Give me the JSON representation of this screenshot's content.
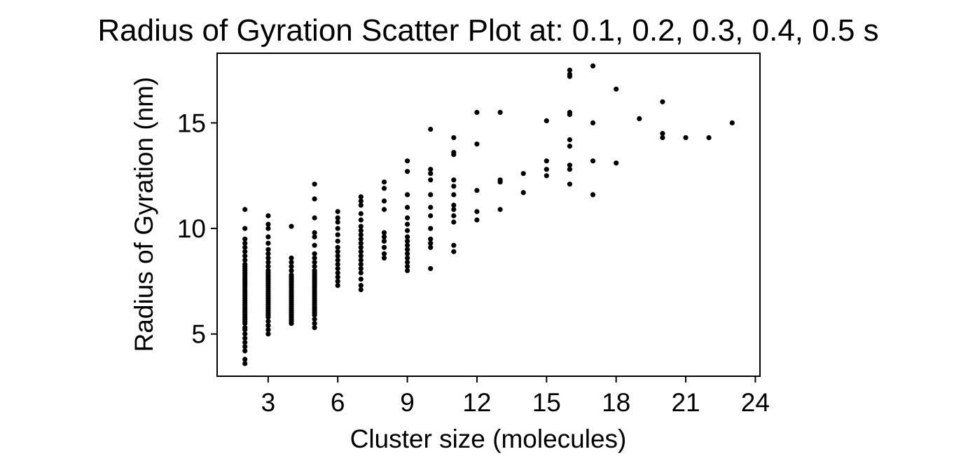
{
  "chart_data": {
    "type": "scatter",
    "title": "Radius of Gyration Scatter Plot at: 0.1, 0.2, 0.3, 0.4, 0.5 s",
    "xlabel": "Cluster size (molecules)",
    "ylabel": "Radius of Gyration (nm)",
    "xlim": [
      0.8,
      24.2
    ],
    "ylim": [
      3.0,
      18.3
    ],
    "xticks": [
      3,
      6,
      9,
      12,
      15,
      18,
      21,
      24
    ],
    "yticks": [
      5,
      10,
      15
    ],
    "grid": false,
    "marker_color": "#000000",
    "series": [
      {
        "points": [
          [
            2,
            3.6
          ],
          [
            2,
            3.8
          ],
          [
            2,
            4.2
          ],
          [
            2,
            4.4
          ],
          [
            2,
            4.6
          ],
          [
            2,
            4.8
          ],
          [
            2,
            5.0
          ],
          [
            2,
            5.2
          ],
          [
            2,
            5.3
          ],
          [
            2,
            5.5
          ],
          [
            2,
            5.6
          ],
          [
            2,
            5.7
          ],
          [
            2,
            5.8
          ],
          [
            2,
            5.9
          ],
          [
            2,
            6.0
          ],
          [
            2,
            6.1
          ],
          [
            2,
            6.2
          ],
          [
            2,
            6.3
          ],
          [
            2,
            6.4
          ],
          [
            2,
            6.5
          ],
          [
            2,
            6.6
          ],
          [
            2,
            6.7
          ],
          [
            2,
            6.8
          ],
          [
            2,
            6.9
          ],
          [
            2,
            7.0
          ],
          [
            2,
            7.1
          ],
          [
            2,
            7.2
          ],
          [
            2,
            7.3
          ],
          [
            2,
            7.4
          ],
          [
            2,
            7.5
          ],
          [
            2,
            7.6
          ],
          [
            2,
            7.7
          ],
          [
            2,
            7.8
          ],
          [
            2,
            7.9
          ],
          [
            2,
            8.0
          ],
          [
            2,
            8.1
          ],
          [
            2,
            8.2
          ],
          [
            2,
            8.3
          ],
          [
            2,
            8.5
          ],
          [
            2,
            8.7
          ],
          [
            2,
            8.9
          ],
          [
            2,
            9.1
          ],
          [
            2,
            9.3
          ],
          [
            2,
            9.5
          ],
          [
            2,
            10.0
          ],
          [
            2,
            10.9
          ],
          [
            3,
            5.0
          ],
          [
            3,
            5.2
          ],
          [
            3,
            5.4
          ],
          [
            3,
            5.6
          ],
          [
            3,
            5.8
          ],
          [
            3,
            5.9
          ],
          [
            3,
            6.0
          ],
          [
            3,
            6.1
          ],
          [
            3,
            6.2
          ],
          [
            3,
            6.3
          ],
          [
            3,
            6.4
          ],
          [
            3,
            6.5
          ],
          [
            3,
            6.6
          ],
          [
            3,
            6.7
          ],
          [
            3,
            6.8
          ],
          [
            3,
            6.9
          ],
          [
            3,
            7.0
          ],
          [
            3,
            7.1
          ],
          [
            3,
            7.2
          ],
          [
            3,
            7.3
          ],
          [
            3,
            7.4
          ],
          [
            3,
            7.5
          ],
          [
            3,
            7.6
          ],
          [
            3,
            7.7
          ],
          [
            3,
            7.8
          ],
          [
            3,
            7.9
          ],
          [
            3,
            8.0
          ],
          [
            3,
            8.2
          ],
          [
            3,
            8.4
          ],
          [
            3,
            8.6
          ],
          [
            3,
            8.8
          ],
          [
            3,
            9.0
          ],
          [
            3,
            9.3
          ],
          [
            3,
            9.6
          ],
          [
            3,
            10.0
          ],
          [
            3,
            10.2
          ],
          [
            3,
            10.6
          ],
          [
            4,
            5.5
          ],
          [
            4,
            5.6
          ],
          [
            4,
            5.7
          ],
          [
            4,
            5.8
          ],
          [
            4,
            5.9
          ],
          [
            4,
            6.0
          ],
          [
            4,
            6.1
          ],
          [
            4,
            6.2
          ],
          [
            4,
            6.3
          ],
          [
            4,
            6.4
          ],
          [
            4,
            6.5
          ],
          [
            4,
            6.6
          ],
          [
            4,
            6.7
          ],
          [
            4,
            6.8
          ],
          [
            4,
            6.9
          ],
          [
            4,
            7.0
          ],
          [
            4,
            7.1
          ],
          [
            4,
            7.2
          ],
          [
            4,
            7.3
          ],
          [
            4,
            7.4
          ],
          [
            4,
            7.5
          ],
          [
            4,
            7.6
          ],
          [
            4,
            7.7
          ],
          [
            4,
            7.8
          ],
          [
            4,
            8.0
          ],
          [
            4,
            8.2
          ],
          [
            4,
            8.4
          ],
          [
            4,
            8.6
          ],
          [
            4,
            10.1
          ],
          [
            5,
            5.3
          ],
          [
            5,
            5.5
          ],
          [
            5,
            5.7
          ],
          [
            5,
            5.9
          ],
          [
            5,
            6.0
          ],
          [
            5,
            6.1
          ],
          [
            5,
            6.2
          ],
          [
            5,
            6.3
          ],
          [
            5,
            6.4
          ],
          [
            5,
            6.5
          ],
          [
            5,
            6.6
          ],
          [
            5,
            6.7
          ],
          [
            5,
            6.8
          ],
          [
            5,
            6.9
          ],
          [
            5,
            7.0
          ],
          [
            5,
            7.1
          ],
          [
            5,
            7.2
          ],
          [
            5,
            7.3
          ],
          [
            5,
            7.4
          ],
          [
            5,
            7.5
          ],
          [
            5,
            7.6
          ],
          [
            5,
            7.7
          ],
          [
            5,
            7.8
          ],
          [
            5,
            7.9
          ],
          [
            5,
            8.0
          ],
          [
            5,
            8.2
          ],
          [
            5,
            8.4
          ],
          [
            5,
            8.6
          ],
          [
            5,
            8.8
          ],
          [
            5,
            9.2
          ],
          [
            5,
            9.6
          ],
          [
            5,
            9.8
          ],
          [
            5,
            10.5
          ],
          [
            5,
            11.4
          ],
          [
            5,
            12.1
          ],
          [
            6,
            7.3
          ],
          [
            6,
            7.5
          ],
          [
            6,
            7.7
          ],
          [
            6,
            7.9
          ],
          [
            6,
            8.1
          ],
          [
            6,
            8.3
          ],
          [
            6,
            8.5
          ],
          [
            6,
            8.7
          ],
          [
            6,
            8.9
          ],
          [
            6,
            9.1
          ],
          [
            6,
            9.4
          ],
          [
            6,
            9.7
          ],
          [
            6,
            10.0
          ],
          [
            6,
            10.3
          ],
          [
            6,
            10.5
          ],
          [
            6,
            10.8
          ],
          [
            7,
            7.1
          ],
          [
            7,
            7.3
          ],
          [
            7,
            7.6
          ],
          [
            7,
            7.9
          ],
          [
            7,
            8.1
          ],
          [
            7,
            8.3
          ],
          [
            7,
            8.5
          ],
          [
            7,
            8.7
          ],
          [
            7,
            8.9
          ],
          [
            7,
            9.1
          ],
          [
            7,
            9.3
          ],
          [
            7,
            9.5
          ],
          [
            7,
            9.7
          ],
          [
            7,
            9.9
          ],
          [
            7,
            10.1
          ],
          [
            7,
            10.4
          ],
          [
            7,
            10.7
          ],
          [
            7,
            11.1
          ],
          [
            7,
            11.3
          ],
          [
            7,
            11.5
          ],
          [
            8,
            8.6
          ],
          [
            8,
            8.8
          ],
          [
            8,
            9.1
          ],
          [
            8,
            9.4
          ],
          [
            8,
            9.6
          ],
          [
            8,
            9.8
          ],
          [
            8,
            10.9
          ],
          [
            8,
            11.3
          ],
          [
            8,
            11.9
          ],
          [
            8,
            12.2
          ],
          [
            9,
            8.0
          ],
          [
            9,
            8.2
          ],
          [
            9,
            8.4
          ],
          [
            9,
            8.6
          ],
          [
            9,
            8.8
          ],
          [
            9,
            9.0
          ],
          [
            9,
            9.2
          ],
          [
            9,
            9.4
          ],
          [
            9,
            9.6
          ],
          [
            9,
            9.9
          ],
          [
            9,
            10.2
          ],
          [
            9,
            10.5
          ],
          [
            9,
            11.0
          ],
          [
            9,
            11.6
          ],
          [
            9,
            12.7
          ],
          [
            9,
            13.2
          ],
          [
            10,
            8.1
          ],
          [
            10,
            9.1
          ],
          [
            10,
            9.3
          ],
          [
            10,
            9.5
          ],
          [
            10,
            10.0
          ],
          [
            10,
            10.6
          ],
          [
            10,
            11.0
          ],
          [
            10,
            11.6
          ],
          [
            10,
            12.3
          ],
          [
            10,
            12.6
          ],
          [
            10,
            12.8
          ],
          [
            10,
            14.7
          ],
          [
            11,
            8.9
          ],
          [
            11,
            9.2
          ],
          [
            11,
            10.3
          ],
          [
            11,
            10.6
          ],
          [
            11,
            10.9
          ],
          [
            11,
            11.1
          ],
          [
            11,
            11.6
          ],
          [
            11,
            12.0
          ],
          [
            11,
            12.3
          ],
          [
            11,
            13.5
          ],
          [
            11,
            13.6
          ],
          [
            11,
            14.3
          ],
          [
            12,
            10.4
          ],
          [
            12,
            10.8
          ],
          [
            12,
            11.8
          ],
          [
            12,
            14.0
          ],
          [
            12,
            15.5
          ],
          [
            13,
            10.9
          ],
          [
            13,
            12.2
          ],
          [
            13,
            12.3
          ],
          [
            13,
            15.5
          ],
          [
            14,
            11.7
          ],
          [
            14,
            12.6
          ],
          [
            15,
            12.5
          ],
          [
            15,
            12.8
          ],
          [
            15,
            13.2
          ],
          [
            15,
            15.1
          ],
          [
            16,
            12.1
          ],
          [
            16,
            12.8
          ],
          [
            16,
            13.0
          ],
          [
            16,
            13.9
          ],
          [
            16,
            14.2
          ],
          [
            16,
            15.4
          ],
          [
            16,
            15.5
          ],
          [
            16,
            17.2
          ],
          [
            16,
            17.3
          ],
          [
            16,
            17.5
          ],
          [
            17,
            11.6
          ],
          [
            17,
            13.2
          ],
          [
            17,
            15.0
          ],
          [
            17,
            17.7
          ],
          [
            18,
            13.1
          ],
          [
            18,
            16.6
          ],
          [
            19,
            15.2
          ],
          [
            20,
            14.3
          ],
          [
            20,
            14.5
          ],
          [
            20,
            16.0
          ],
          [
            21,
            14.3
          ],
          [
            22,
            14.3
          ],
          [
            23,
            15.0
          ]
        ]
      }
    ]
  }
}
